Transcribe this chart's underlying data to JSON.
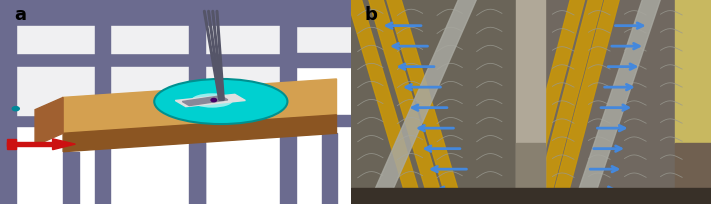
{
  "fig_width": 7.11,
  "fig_height": 2.05,
  "dpi": 100,
  "label_a": "a",
  "label_b": "b",
  "label_fontsize": 13,
  "label_fontweight": "bold",
  "label_color": "#000000",
  "panel_split": 0.493,
  "colors": {
    "wall_white": "#f0f0f2",
    "beam_purple": "#6b6b8f",
    "beam_dark": "#5a5a7a",
    "floor_tan": "#d4a050",
    "floor_brown": "#8b5522",
    "floor_side": "#a06030",
    "turntable_cyan": "#00d0d0",
    "turntable_ring": "#009090",
    "stab_dark": "#505060",
    "stab_gray": "#909090",
    "red_body": "#cc1111",
    "cyan_dot": "#008899",
    "photo_bg_left": "#7a7570",
    "photo_bg_right": "#8a8075",
    "photo_gold": "#c8960a",
    "photo_silver": "#b0b0b0",
    "photo_blue": "#4488dd",
    "photo_tuft": "#aaaaaa",
    "photo_dark_bg": "#404038",
    "photo_tan": "#c0a060",
    "photo_upper": "#c8c8c8"
  }
}
